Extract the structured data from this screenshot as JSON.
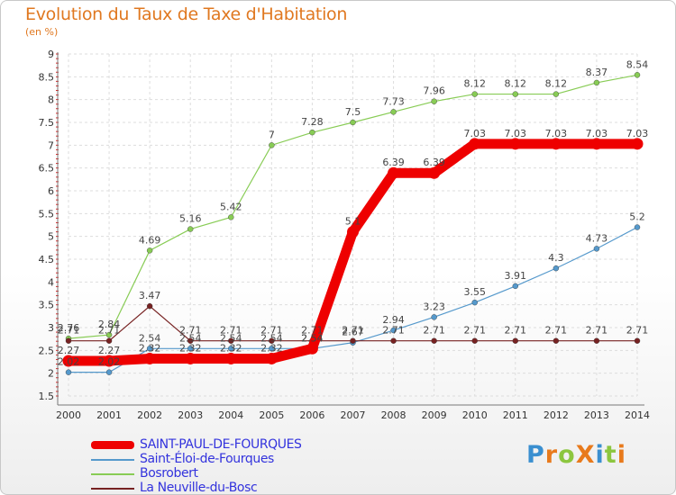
{
  "title": "Evolution du Taux de Taxe d'Habitation",
  "unit": "(en %)",
  "logo": {
    "text": "ProXiti",
    "letter_colors": [
      "#3a8fd0",
      "#e87a1c",
      "#8cc63f",
      "#e87a1c",
      "#3a8fd0",
      "#8cc63f",
      "#e87a1c"
    ]
  },
  "chart_data": {
    "type": "line",
    "title": "Evolution du Taux de Taxe d'Habitation",
    "ylabel": "(en %)",
    "xlabel": "",
    "ylim": [
      1.5,
      9
    ],
    "yticks": [
      "1.5",
      "2",
      "2.5",
      "3",
      "3.5",
      "4",
      "4.5",
      "5",
      "5.5",
      "6",
      "6.5",
      "7",
      "7.5",
      "8",
      "8.5",
      "9"
    ],
    "x": [
      "2000",
      "2001",
      "2002",
      "2003",
      "2004",
      "2005",
      "2006",
      "2007",
      "2008",
      "2009",
      "2010",
      "2011",
      "2012",
      "2013",
      "2014"
    ],
    "grid": true,
    "legend_position": "bottom-left",
    "series": [
      {
        "name": "Bosrobert",
        "color": "#88cc55",
        "values": [
          2.76,
          2.84,
          4.69,
          5.16,
          5.42,
          7,
          7.28,
          7.5,
          7.73,
          7.96,
          8.12,
          8.12,
          8.12,
          8.37,
          8.54
        ],
        "labels": [
          "2.76",
          "2.84",
          "4.69",
          "5.16",
          "5.42",
          "7",
          "7.28",
          "7.5",
          "7.73",
          "7.96",
          "8.12",
          "8.12",
          "8.12",
          "8.37",
          "8.54"
        ]
      },
      {
        "name": "Saint-Éloi-de-Fourques",
        "color": "#5599cc",
        "values": [
          2.02,
          2.02,
          2.54,
          2.54,
          2.54,
          2.54,
          2.54,
          2.67,
          2.94,
          3.23,
          3.55,
          3.91,
          4.3,
          4.73,
          5.2
        ],
        "labels": [
          "2.02",
          "2.02",
          "2.54",
          "2.54",
          "2.54",
          "2.54",
          "2.54",
          "2.67",
          "2.94",
          "3.23",
          "3.55",
          "3.91",
          "4.3",
          "4.73",
          "5.2"
        ]
      },
      {
        "name": "La Neuville-du-Bosc",
        "color": "#772222",
        "values": [
          2.71,
          2.71,
          3.47,
          2.71,
          2.71,
          2.71,
          2.71,
          2.71,
          2.71,
          2.71,
          2.71,
          2.71,
          2.71,
          2.71,
          2.71
        ],
        "labels": [
          "2.71",
          "2.71",
          "3.47",
          "2.71",
          "2.71",
          "2.71",
          "2.71",
          "2.71",
          "2.71",
          "2.71",
          "2.71",
          "2.71",
          "2.71",
          "2.71",
          "2.71"
        ]
      },
      {
        "name": "SAINT-PAUL-DE-FOURQUES",
        "color": "#ee0000",
        "bold": true,
        "values": [
          2.27,
          2.27,
          2.32,
          2.32,
          2.32,
          2.32,
          2.54,
          5.1,
          6.39,
          6.39,
          7.03,
          7.03,
          7.03,
          7.03,
          7.03
        ],
        "labels": [
          "2.27",
          "2.27",
          "2.32",
          "2.32",
          "2.32",
          "2.32",
          "2.54",
          "5.1",
          "6.39",
          "6.39",
          "7.03",
          "7.03",
          "7.03",
          "7.03",
          "7.03"
        ]
      }
    ]
  },
  "legend": [
    {
      "label": "SAINT-PAUL-DE-FOURQUES",
      "color": "#ee0000",
      "bold": true
    },
    {
      "label": "Saint-Éloi-de-Fourques",
      "color": "#5599cc",
      "bold": false
    },
    {
      "label": "Bosrobert",
      "color": "#88cc55",
      "bold": false
    },
    {
      "label": "La Neuville-du-Bosc",
      "color": "#772222",
      "bold": false
    }
  ]
}
